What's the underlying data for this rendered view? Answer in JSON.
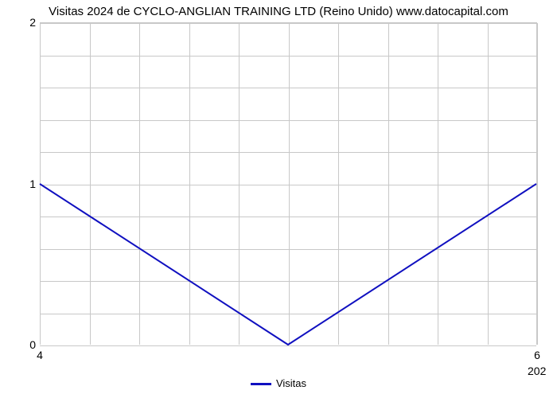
{
  "chart": {
    "type": "line",
    "title": "Visitas 2024 de CYCLO-ANGLIAN TRAINING LTD (Reino Unido) www.datocapital.com",
    "title_fontsize": 15,
    "background_color": "#ffffff",
    "grid_color": "#c8c8c8",
    "line_color": "#1010c0",
    "line_width": 2,
    "x_values": [
      4,
      5,
      6
    ],
    "y_values": [
      1,
      0,
      1
    ],
    "xlim": [
      4,
      6
    ],
    "ylim": [
      0,
      2
    ],
    "x_ticks": [
      4,
      6
    ],
    "x_tick_labels": [
      "4",
      "6"
    ],
    "x_sublabel_right": "202",
    "y_ticks": [
      0,
      1,
      2
    ],
    "y_tick_labels": [
      "0",
      "1",
      "2"
    ],
    "y_minor_count_between": 4,
    "x_grid_count": 11,
    "legend_label": "Visitas",
    "label_fontsize": 14
  }
}
